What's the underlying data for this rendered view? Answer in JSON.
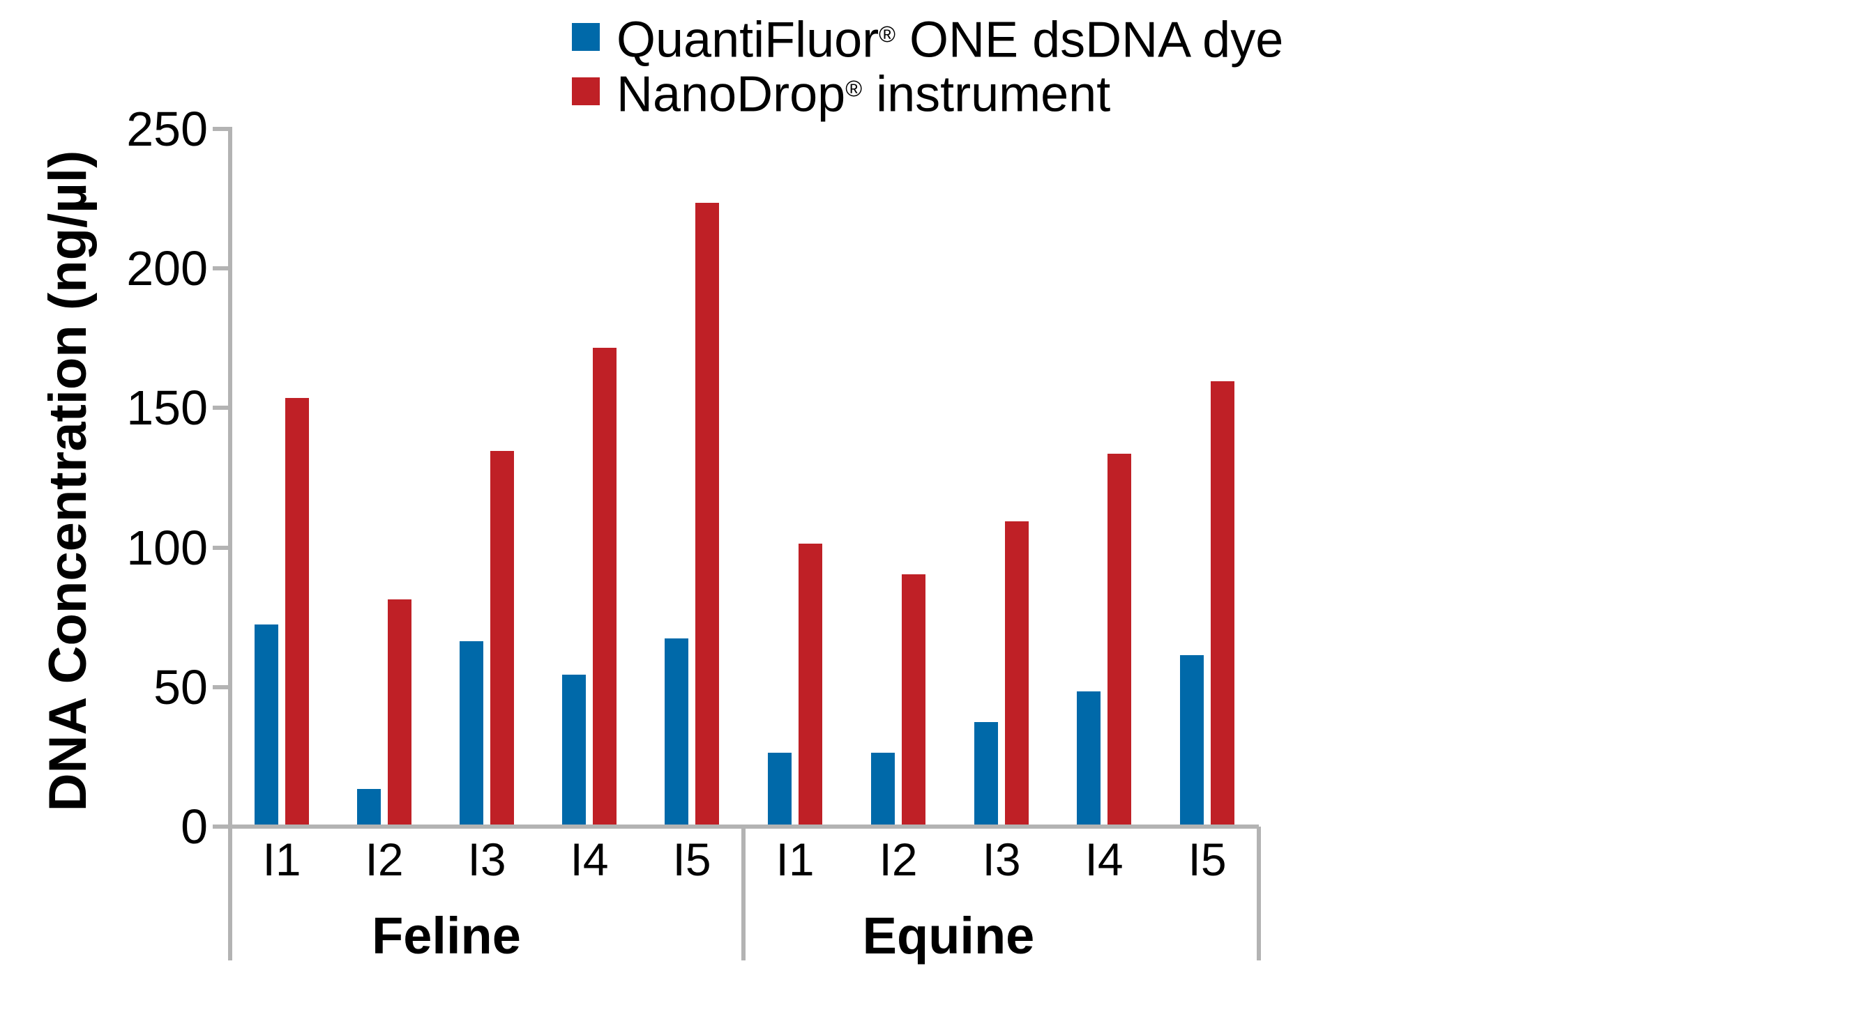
{
  "legend": {
    "items": [
      {
        "brand": "QuantiFluor",
        "reg": "®",
        "suffix": " ONE dsDNA dye",
        "color": "#0069A9"
      },
      {
        "brand": "NanoDrop",
        "reg": "®",
        "suffix": " instrument",
        "color": "#BF2026"
      }
    ]
  },
  "y_axis": {
    "title": "DNA Concentration (ng/µl)",
    "tick_labels": [
      "0",
      "50",
      "100",
      "150",
      "200",
      "250"
    ]
  },
  "x_axis": {
    "group_labels": [
      "Feline",
      "Equine"
    ],
    "category_labels": [
      "I1",
      "I2",
      "I3",
      "I4",
      "I5"
    ]
  },
  "colors": {
    "blue": "#0069A9",
    "red": "#BF2026",
    "axis_gray": "#B3B3B3",
    "text": "#000000",
    "background": "#FFFFFF"
  },
  "chart_data": {
    "type": "bar",
    "title": "",
    "xlabel": "",
    "ylabel": "DNA Concentration (ng/µl)",
    "ylim": [
      0,
      250
    ],
    "ytick_step": 50,
    "grid": false,
    "legend_position": "top-center",
    "groups": [
      {
        "label": "Feline",
        "categories": [
          "I1",
          "I2",
          "I3",
          "I4",
          "I5"
        ],
        "series": [
          {
            "name": "QuantiFluor® ONE dsDNA dye",
            "color": "#0069A9",
            "values": [
              72,
              13,
              66,
              54,
              67
            ]
          },
          {
            "name": "NanoDrop® instrument",
            "color": "#BF2026",
            "values": [
              153,
              81,
              134,
              171,
              223
            ]
          }
        ]
      },
      {
        "label": "Equine",
        "categories": [
          "I1",
          "I2",
          "I3",
          "I4",
          "I5"
        ],
        "series": [
          {
            "name": "QuantiFluor® ONE dsDNA dye",
            "color": "#0069A9",
            "values": [
              26,
              26,
              37,
              48,
              61
            ]
          },
          {
            "name": "NanoDrop® instrument",
            "color": "#BF2026",
            "values": [
              101,
              90,
              109,
              133,
              159
            ]
          }
        ]
      }
    ]
  }
}
